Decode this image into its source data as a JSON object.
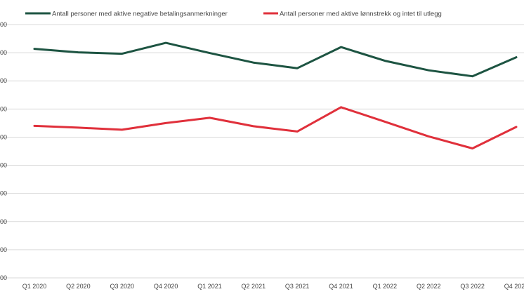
{
  "chart_data": {
    "type": "line",
    "categories": [
      "Q1 2020",
      "Q2 2020",
      "Q3 2020",
      "Q4 2020",
      "Q1 2021",
      "Q2 2021",
      "Q3 2021",
      "Q4 2021",
      "Q1 2022",
      "Q2 2022",
      "Q3 2022",
      "Q4 2022"
    ],
    "ylim": [
      0,
      360
    ],
    "y_ticks": [
      0,
      40,
      80,
      120,
      160,
      200,
      240,
      280,
      320,
      360
    ],
    "y_tick_labels": [
      "00",
      "00",
      "00",
      "00",
      "00",
      "00",
      "00",
      "00",
      "00",
      "00"
    ],
    "grid": true,
    "legend_position": "top",
    "series": [
      {
        "name": "Antall personer med aktive negative betalingsanmerkninger",
        "color": "#1d5442",
        "values": [
          325.5,
          320.5,
          318.5,
          334,
          319.5,
          306,
          298,
          328,
          308.5,
          295,
          286.5,
          313.5
        ]
      },
      {
        "name": "Antall personer med aktive lønnstrekk og intet til utlegg",
        "color": "#e0303b",
        "values": [
          216,
          213.5,
          210.5,
          220,
          227.5,
          215.5,
          208,
          242.5,
          222,
          201,
          184,
          214.5
        ]
      }
    ]
  }
}
